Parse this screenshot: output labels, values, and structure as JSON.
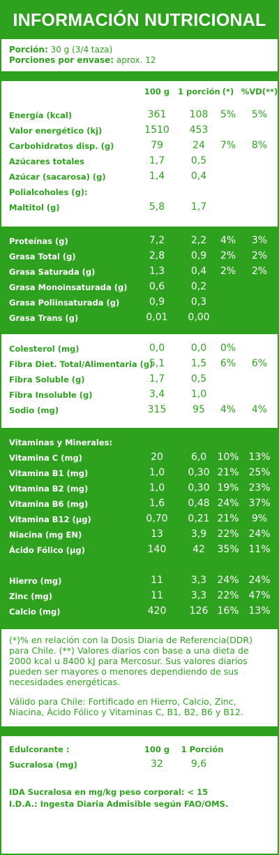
{
  "title": "INFORMACIÓN NUTRICIONAL",
  "portion": {
    "label1": "Porción:",
    "value1": " 30 g (3/4 taza)",
    "label2": "Porciones por envase:",
    "value2": " aprox. 12"
  },
  "header": {
    "col1": "100 g",
    "col2": "1 porción",
    "col3": "(*)",
    "col4": "%VD(**)"
  },
  "sections": [
    {
      "style": "white",
      "rows": [
        {
          "label": "Energía (kcal)",
          "v100": "361",
          "vpor": "108",
          "p1": "5%",
          "p2": "5%"
        },
        {
          "label": "Valor energético (kj)",
          "v100": "1510",
          "vpor": "453",
          "p1": "",
          "p2": ""
        },
        {
          "label": "Carbohidratos disp. (g)",
          "v100": "79",
          "vpor": "24",
          "p1": "7%",
          "p2": "8%"
        },
        {
          "label": "Azúcares totales",
          "v100": "1,7",
          "vpor": "0,5",
          "p1": "",
          "p2": ""
        },
        {
          "label": "Azúcar (sacarosa) (g)",
          "v100": "1,4",
          "vpor": "0,4",
          "p1": "",
          "p2": ""
        },
        {
          "label": "Polialcoholes (g):",
          "v100": "",
          "vpor": "",
          "p1": "",
          "p2": ""
        },
        {
          "label": "Maltitol (g)",
          "v100": "5,8",
          "vpor": "1,7",
          "p1": "",
          "p2": ""
        }
      ]
    },
    {
      "style": "green",
      "rows": [
        {
          "label": "Proteínas (g)",
          "v100": "7,2",
          "vpor": "2,2",
          "p1": "4%",
          "p2": "3%"
        },
        {
          "label": "Grasa Total (g)",
          "v100": "2,8",
          "vpor": "0,9",
          "p1": "2%",
          "p2": "2%"
        },
        {
          "label": "Grasa Saturada (g)",
          "v100": "1,3",
          "vpor": "0,4",
          "p1": "2%",
          "p2": "2%"
        },
        {
          "label": "Grasa Monoinsaturada (g)",
          "v100": "0,6",
          "vpor": "0,2",
          "p1": "",
          "p2": ""
        },
        {
          "label": "Grasa Poliinsaturada (g)",
          "v100": "0,9",
          "vpor": "0,3",
          "p1": "",
          "p2": ""
        },
        {
          "label": "Grasa Trans (g)",
          "v100": "0,01",
          "vpor": "0,00",
          "p1": "",
          "p2": ""
        }
      ]
    },
    {
      "style": "white",
      "rows": [
        {
          "label": "Colesterol (mg)",
          "v100": "0,0",
          "vpor": "0,0",
          "p1": "0%",
          "p2": ""
        },
        {
          "label": "Fibra Diet. Total/Alimentaria (g)",
          "v100": "5,1",
          "vpor": "1,5",
          "p1": "6%",
          "p2": "6%"
        },
        {
          "label": "Fibra Soluble (g)",
          "v100": "1,7",
          "vpor": "0,5",
          "p1": "",
          "p2": ""
        },
        {
          "label": "Fibra Insoluble (g)",
          "v100": "3,4",
          "vpor": "1,0",
          "p1": "",
          "p2": ""
        },
        {
          "label": "Sodio (mg)",
          "v100": "315",
          "vpor": "95",
          "p1": "4%",
          "p2": "4%"
        }
      ]
    },
    {
      "style": "green",
      "rows": [
        {
          "label": "Vitaminas y Minerales:",
          "v100": "",
          "vpor": "",
          "p1": "",
          "p2": ""
        },
        {
          "label": "Vitamina C (mg)",
          "v100": "20",
          "vpor": "6,0",
          "p1": "10%",
          "p2": "13%"
        },
        {
          "label": "Vitamina B1 (mg)",
          "v100": "1,0",
          "vpor": "0,30",
          "p1": "21%",
          "p2": "25%"
        },
        {
          "label": "Vitamina B2 (mg)",
          "v100": "1,0",
          "vpor": "0,30",
          "p1": "19%",
          "p2": "23%"
        },
        {
          "label": "Vitamina B6 (mg)",
          "v100": "1,6",
          "vpor": "0,48",
          "p1": "24%",
          "p2": "37%"
        },
        {
          "label": "Vitamina B12 (µg)",
          "v100": "0,70",
          "vpor": "0,21",
          "p1": "21%",
          "p2": "9%"
        },
        {
          "label": "Niacina (mg EN)",
          "v100": "13",
          "vpor": "3,9",
          "p1": "22%",
          "p2": "24%"
        },
        {
          "label": "Ácido Fólico (µg)",
          "v100": "140",
          "vpor": "42",
          "p1": "35%",
          "p2": "11%"
        },
        {
          "label": "",
          "v100": "",
          "vpor": "",
          "p1": "",
          "p2": ""
        },
        {
          "label": "Hierro (mg)",
          "v100": "11",
          "vpor": "3,3",
          "p1": "24%",
          "p2": "24%"
        },
        {
          "label": "Zinc (mg)",
          "v100": "11",
          "vpor": "3,3",
          "p1": "22%",
          "p2": "47%"
        },
        {
          "label": "Calcio (mg)",
          "v100": "420",
          "vpor": "126",
          "p1": "16%",
          "p2": "13%"
        }
      ]
    }
  ],
  "notes": {
    "p1": "(*)% en relación con la Dosis Diaria de Referencia(DDR) para Chile. (**) Valores diarios con base a una dieta de 2000 kcal u 8400 kJ para Mercosur. Sus valores diarios pueden ser mayores o menores dependiendo de sus necesidades energéticas.",
    "p2": "Válido para Chile: Fortificado  en Hierro, Calcio, Zinc, Niacina, Ácido Fólico  y Vitaminas C, B1, B2, B6 y B12."
  },
  "sweetener": {
    "label": "Edulcorante :",
    "col1": "100 g",
    "col2": "1 Porción",
    "row_label": "Sucralosa (mg)",
    "v100": "32",
    "vpor": "9,6"
  },
  "ida": {
    "line1": "IDA Sucralosa en mg/kg peso corporal: < 15",
    "line2": "I.D.A.: Ingesta Diaria Admisible según FAO/OMS."
  },
  "colors": {
    "brand_green": "#2ea21f",
    "text_on_green": "#ffffff"
  }
}
